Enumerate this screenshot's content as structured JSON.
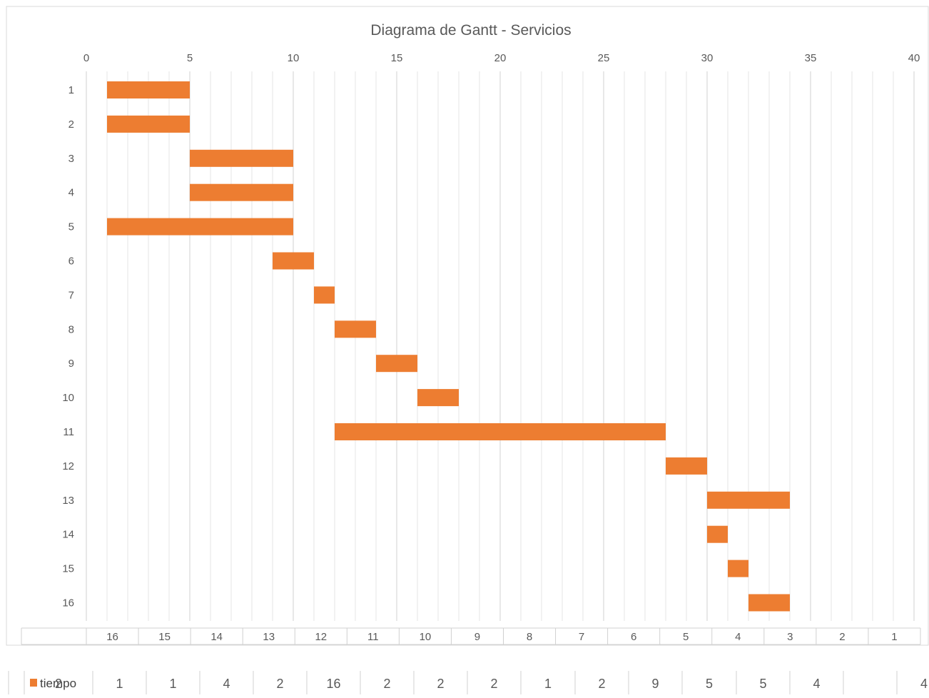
{
  "chart_data": {
    "type": "gantt",
    "title": "Diagrama de Gantt - Servicios",
    "xlim": [
      0,
      40
    ],
    "x_ticks": [
      0,
      5,
      10,
      15,
      20,
      25,
      30,
      35,
      40
    ],
    "grid": "vertical, every 1 unit",
    "tasks": [
      {
        "label": "1",
        "start": 1,
        "end": 5
      },
      {
        "label": "2",
        "start": 1,
        "end": 5
      },
      {
        "label": "3",
        "start": 5,
        "end": 10
      },
      {
        "label": "4",
        "start": 5,
        "end": 10
      },
      {
        "label": "5",
        "start": 1,
        "end": 10
      },
      {
        "label": "6",
        "start": 9,
        "end": 11
      },
      {
        "label": "7",
        "start": 11,
        "end": 12
      },
      {
        "label": "8",
        "start": 12,
        "end": 14
      },
      {
        "label": "9",
        "start": 14,
        "end": 16
      },
      {
        "label": "10",
        "start": 16,
        "end": 18
      },
      {
        "label": "11",
        "start": 12,
        "end": 28
      },
      {
        "label": "12",
        "start": 28,
        "end": 30
      },
      {
        "label": "13",
        "start": 30,
        "end": 34
      },
      {
        "label": "14",
        "start": 30,
        "end": 31
      },
      {
        "label": "15",
        "start": 31,
        "end": 32
      },
      {
        "label": "16",
        "start": 32,
        "end": 34
      }
    ],
    "bar_color": "#ED7D31",
    "category_table": [
      "16",
      "15",
      "14",
      "13",
      "12",
      "11",
      "10",
      "9",
      "8",
      "7",
      "6",
      "5",
      "4",
      "3",
      "2",
      "1"
    ],
    "data_table": {
      "series_name": "tiempo",
      "values": [
        "2",
        "1",
        "1",
        "4",
        "2",
        "16",
        "2",
        "2",
        "2",
        "1",
        "2",
        "9",
        "5",
        "5",
        "4",
        "4"
      ]
    }
  }
}
